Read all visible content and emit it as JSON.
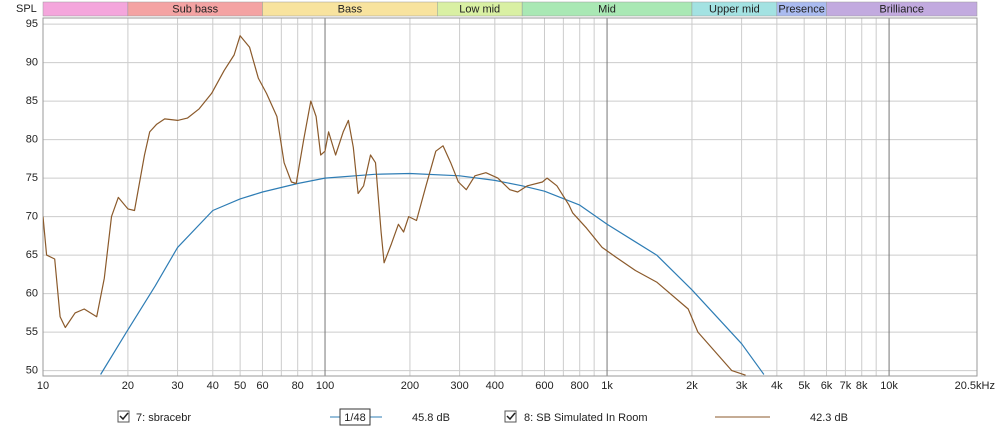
{
  "chart_data": {
    "type": "line",
    "ylabel": "SPL",
    "xlog": true,
    "xlim": [
      10,
      20500
    ],
    "ylim": [
      49.3,
      95.8
    ],
    "yticks": [
      50,
      55,
      60,
      65,
      70,
      75,
      80,
      85,
      90,
      95
    ],
    "xticks": [
      10,
      20,
      30,
      40,
      50,
      60,
      80,
      100,
      200,
      300,
      400,
      600,
      800,
      {
        "value": 1000,
        "label": "1k"
      },
      {
        "value": 2000,
        "label": "2k"
      },
      {
        "value": 3000,
        "label": "3k"
      },
      {
        "value": 4000,
        "label": "4k"
      },
      {
        "value": 5000,
        "label": "5k"
      },
      {
        "value": 6000,
        "label": "6k"
      },
      {
        "value": 7000,
        "label": "7k"
      },
      {
        "value": 8000,
        "label": "8k"
      },
      {
        "value": 10000,
        "label": "10k"
      },
      {
        "value": 20500,
        "label": "20.5kHz"
      }
    ],
    "xminor": [
      70,
      90,
      500,
      700,
      900,
      9000
    ],
    "grid": true,
    "bands": [
      {
        "from": 10,
        "to": 20,
        "label": null,
        "color": "#f4a6dc"
      },
      {
        "from": 20,
        "to": 60,
        "label": "Sub bass",
        "color": "#f4a3a3"
      },
      {
        "from": 60,
        "to": 250,
        "label": "Bass",
        "color": "#f8e39e"
      },
      {
        "from": 250,
        "to": 500,
        "label": "Low mid",
        "color": "#d9f0a3"
      },
      {
        "from": 500,
        "to": 2000,
        "label": "Mid",
        "color": "#a9e8b4"
      },
      {
        "from": 2000,
        "to": 4000,
        "label": "Upper mid",
        "color": "#a3e2e2"
      },
      {
        "from": 4000,
        "to": 6000,
        "label": "Presence",
        "color": "#aabbf0"
      },
      {
        "from": 6000,
        "to": 20500,
        "label": "Brilliance",
        "color": "#c2aadf"
      }
    ],
    "series": [
      {
        "name": "7: sbracebr",
        "color": "#2e7db5",
        "readout": "45.8 dB",
        "x": [
          16,
          20,
          25,
          30,
          40,
          50,
          60,
          80,
          100,
          150,
          200,
          300,
          400,
          500,
          600,
          800,
          1000,
          1500,
          2000,
          3000,
          3600
        ],
        "values": [
          49.5,
          55.3,
          61,
          66,
          70.8,
          72.3,
          73.2,
          74.3,
          75,
          75.5,
          75.6,
          75.3,
          74.7,
          74,
          73.3,
          71.5,
          69,
          65,
          60.5,
          53.5,
          49.5
        ]
      },
      {
        "name": "8: SB Simulated In Room",
        "color": "#8b5a2b",
        "readout": "42.3 dB",
        "x": [
          10,
          10.3,
          11,
          11.5,
          12,
          13,
          14,
          15.5,
          16.5,
          17.5,
          18.5,
          20,
          21.1,
          22.9,
          23.9,
          25.3,
          27,
          30,
          32.5,
          35.8,
          39.6,
          43.9,
          47.6,
          50,
          54,
          58,
          62,
          67.5,
          71.6,
          76,
          79,
          84,
          89,
          93,
          96.5,
          100,
          103,
          109,
          116,
          121,
          126,
          131,
          137,
          145,
          151,
          158,
          162,
          172,
          182,
          190,
          198,
          211,
          228,
          247,
          262,
          279,
          297,
          317,
          340,
          372,
          410,
          452,
          482,
          522,
          590,
          613,
          664,
          733,
          755,
          846,
          960,
          1070,
          1260,
          1500,
          1940,
          2100,
          2770,
          3100
        ],
        "values": [
          70,
          65,
          64.5,
          57,
          55.6,
          57.5,
          58,
          57,
          62,
          70,
          72.5,
          71,
          70.8,
          78,
          81,
          82,
          82.7,
          82.5,
          82.8,
          84,
          86,
          89,
          91,
          93.5,
          92,
          88,
          86,
          83,
          77,
          74.5,
          74.3,
          80,
          85,
          83,
          78,
          78.5,
          81,
          78,
          81,
          82.5,
          79,
          73,
          74,
          78,
          77,
          68,
          64,
          66.5,
          69,
          68,
          70,
          69.5,
          74,
          78.5,
          79.2,
          77,
          74.5,
          73.5,
          75.3,
          75.7,
          75,
          73.5,
          73.2,
          74,
          74.5,
          75,
          74,
          71.5,
          70.5,
          68.5,
          66,
          64.8,
          63,
          61.5,
          58,
          55,
          50,
          49.4
        ]
      }
    ],
    "smoothing": "1/48"
  }
}
